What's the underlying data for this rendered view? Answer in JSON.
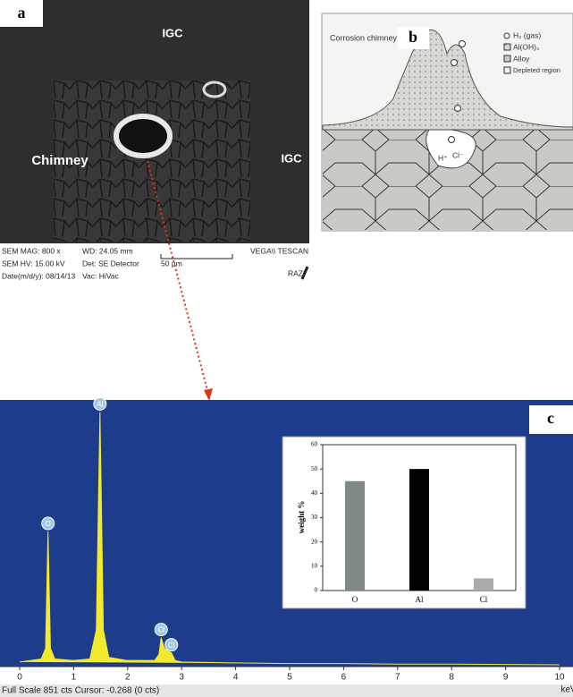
{
  "panel_a": {
    "label": "a",
    "annotations": [
      "IGC",
      "Chimney",
      "IGC"
    ],
    "info": [
      "SEM MAG: 800 x",
      "WD: 24.05 mm",
      "VEGA\\\\ TESCAN",
      "SEM HV: 15.00 kV",
      "Det: SE Detector",
      "50 µm",
      "Date(m/d/y): 08/14/13",
      "Vac: HiVac",
      "RAZI"
    ]
  },
  "panel_b": {
    "label": "b",
    "title": "Corrosion chimney",
    "legend": [
      "H₂ (gas)",
      "Al(OH)₃",
      "Alloy",
      "Depleted region"
    ],
    "ions": [
      "H⁺",
      "Cl⁻"
    ]
  },
  "panel_c": {
    "label": "c",
    "status": "Full Scale 851 cts Cursor: -0.268 (0 cts)"
  },
  "chart_data": [
    {
      "type": "line",
      "color": "#f2ea2c",
      "xlabel": "keV",
      "x": [
        0,
        0.2,
        0.4,
        0.48,
        0.525,
        0.57,
        0.65,
        1.0,
        1.3,
        1.42,
        1.487,
        1.55,
        1.65,
        2.0,
        2.5,
        2.58,
        2.62,
        2.68,
        2.75,
        2.81,
        2.88,
        3.0,
        4,
        5,
        6,
        7,
        8,
        9,
        10
      ],
      "values": [
        15,
        20,
        25,
        60,
        443,
        60,
        25,
        20,
        25,
        120,
        835,
        120,
        30,
        20,
        20,
        40,
        95,
        60,
        50,
        45,
        20,
        15,
        12,
        10,
        10,
        8,
        8,
        7,
        6
      ],
      "xlim": [
        0,
        10
      ],
      "ylim": [
        0,
        851
      ],
      "xticks": [
        0,
        1,
        2,
        3,
        4,
        5,
        6,
        7,
        8,
        9,
        10
      ],
      "peak_labels": [
        {
          "label": "O",
          "x": 0.525
        },
        {
          "label": "Al",
          "x": 1.487
        },
        {
          "label": "Cl",
          "x": 2.62
        },
        {
          "label": "Cl",
          "x": 2.81
        }
      ]
    },
    {
      "type": "bar",
      "ylabel": "weight %",
      "categories": [
        "O",
        "Al",
        "Cl"
      ],
      "values": [
        45,
        50,
        5
      ],
      "colors": [
        "#7f8a87",
        "#000000",
        "#a8abaa"
      ],
      "ylim": [
        0,
        60
      ],
      "yticks": [
        0,
        10,
        20,
        30,
        40,
        50,
        60
      ]
    }
  ]
}
